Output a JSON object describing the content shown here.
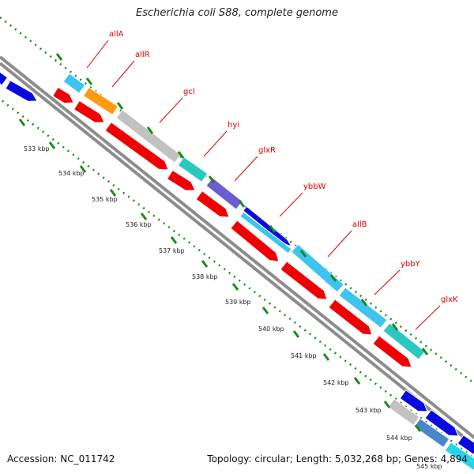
{
  "title": "Escherichia coli S88, complete genome",
  "footer": {
    "accession": "Accession: NC_011742",
    "summary": "Topology: circular; Length: 5,032,268 bp; Genes: 4,894"
  },
  "ticks": [
    "533 kbp",
    "534 kbp",
    "535 kbp",
    "536 kbp",
    "537 kbp",
    "538 kbp",
    "539 kbp",
    "540 kbp",
    "541 kbp",
    "542 kbp",
    "543 kbp",
    "544 kbp",
    "545 kbp"
  ],
  "gene_labels": [
    "allA",
    "allR",
    "gcl",
    "hyi",
    "glxR",
    "ybbW",
    "allB",
    "ybbY",
    "glxK"
  ],
  "colors": {
    "cds_red": "#f00000",
    "cyan": "#3fc4f0",
    "orange": "#ff9911",
    "gray": "#c2c2c2",
    "teal": "#29c8c0",
    "purple": "#6b5cd0",
    "blue": "#0a0ae0",
    "steelblue": "#4a86c8",
    "label_red": "#dd0000",
    "dots_green": "#1a8a1a"
  }
}
